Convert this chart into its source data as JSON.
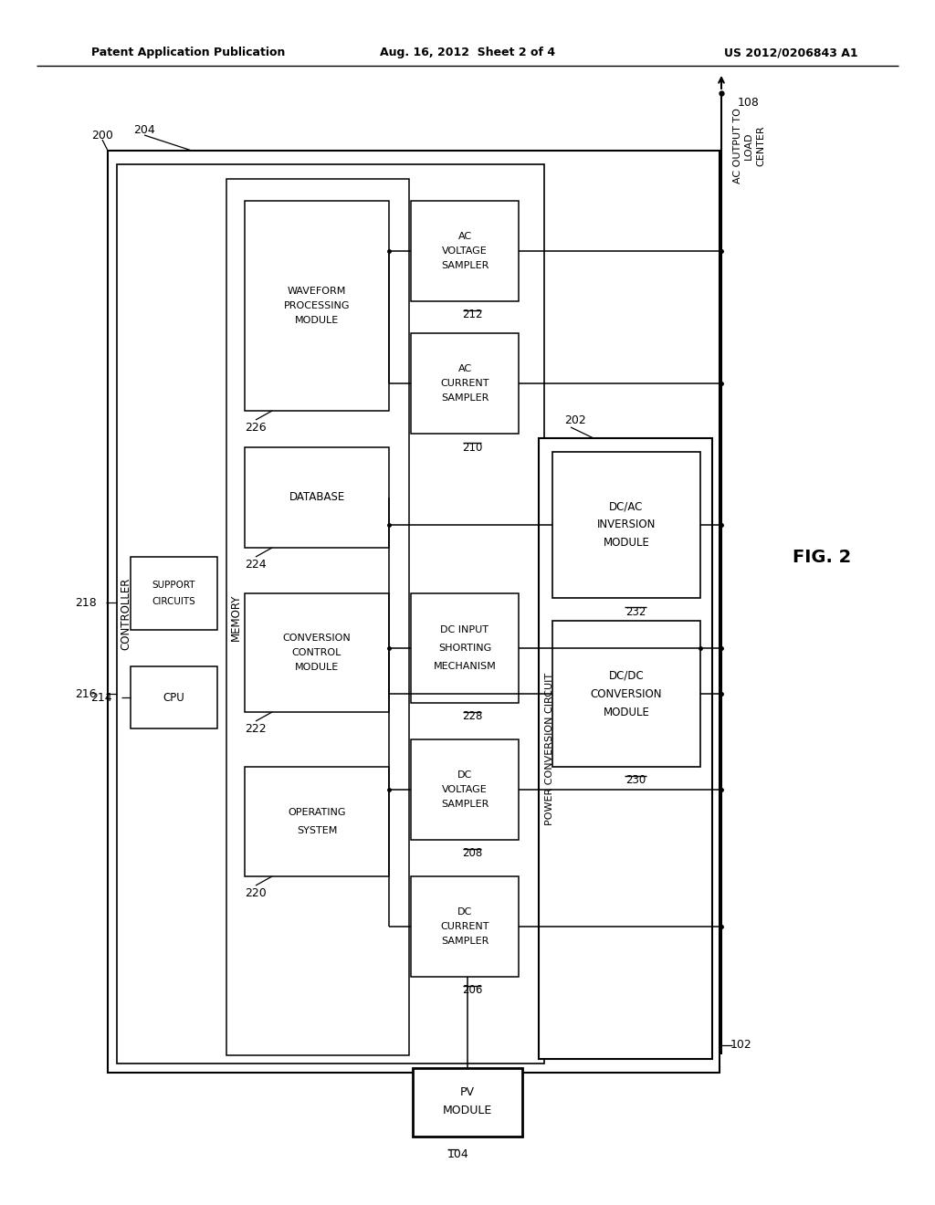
{
  "header_left": "Patent Application Publication",
  "header_mid": "Aug. 16, 2012  Sheet 2 of 4",
  "header_right": "US 2012/0206843 A1",
  "background": "#ffffff"
}
